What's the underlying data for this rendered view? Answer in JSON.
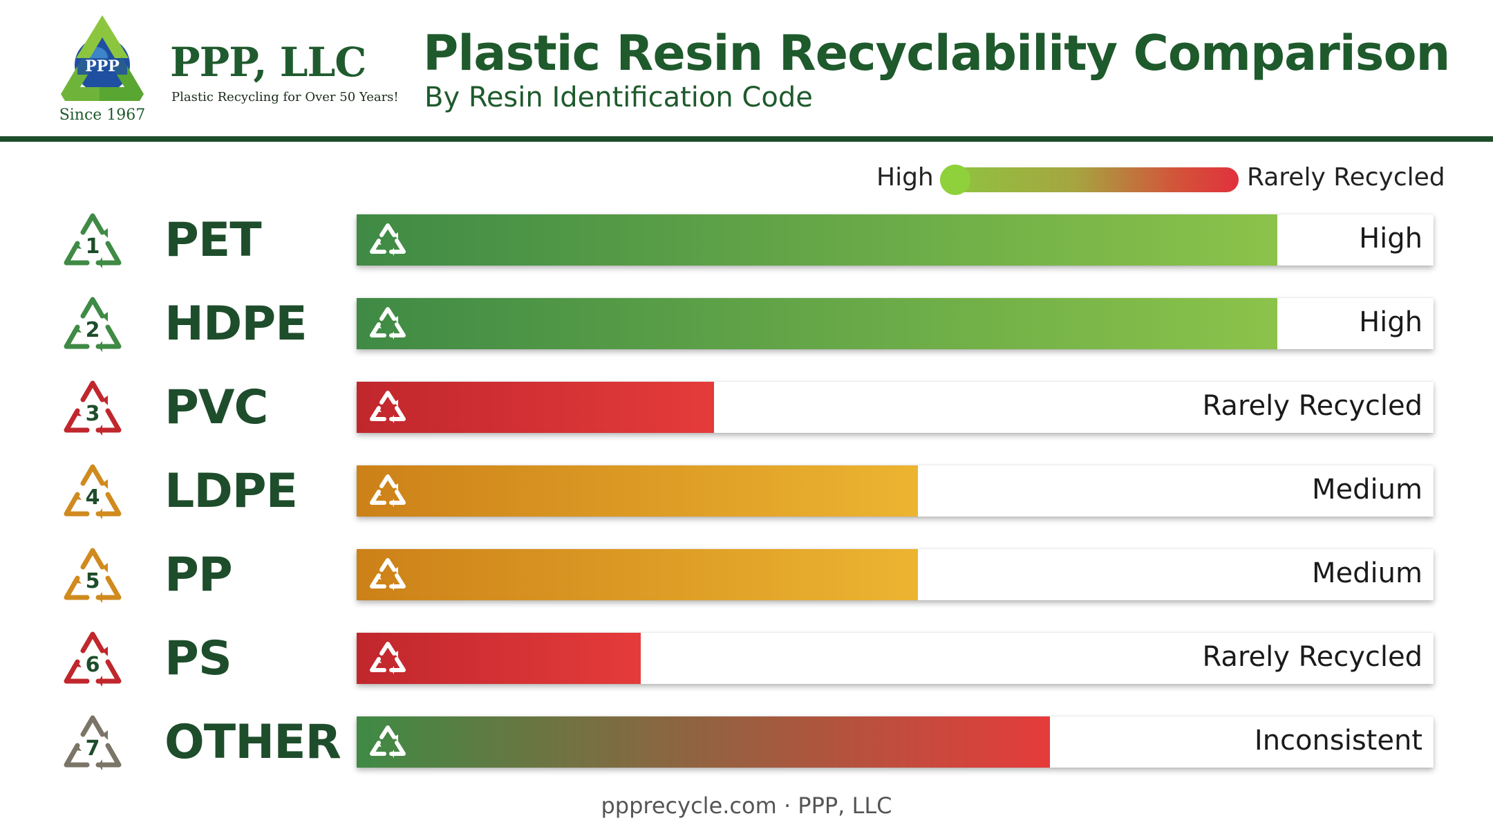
{
  "brand": {
    "logo_text": "PPP",
    "name": "PPP, LLC",
    "tagline": "Plastic Recycling for Over 50 Years!",
    "since": "Since 1967"
  },
  "title": "Plastic Resin Recyclability Comparison",
  "subtitle": "By Resin Identification Code",
  "legend": {
    "high_label": "High",
    "low_label": "Rarely Recycled",
    "colors": [
      "#8dc63f",
      "#e0313c"
    ]
  },
  "footer": "ppprecycle.com · PPP, LLC",
  "chart_data": {
    "type": "bar",
    "orientation": "horizontal",
    "title": "Plastic Resin Recyclability Comparison",
    "subtitle": "By Resin Identification Code",
    "xlim": [
      0,
      1
    ],
    "categories": [
      "PET",
      "HDPE",
      "PVC",
      "LDPE",
      "PP",
      "PS",
      "OTHER"
    ],
    "codes": [
      "1",
      "2",
      "3",
      "4",
      "5",
      "6",
      "7"
    ],
    "values": [
      0.855,
      0.855,
      0.332,
      0.521,
      0.521,
      0.264,
      0.644
    ],
    "levels": [
      "High",
      "High",
      "Rarely Recycled",
      "Medium",
      "Medium",
      "Rarely Recycled",
      "Inconsistent"
    ],
    "bar_colors": [
      [
        "#3f8a45",
        "#8bc34a"
      ],
      [
        "#3f8a45",
        "#8bc34a"
      ],
      [
        "#c0272d",
        "#e53b3b"
      ],
      [
        "#cc8118",
        "#ecb431"
      ],
      [
        "#cc8118",
        "#ecb431"
      ],
      [
        "#c0272d",
        "#e53b3b"
      ],
      [
        "#3f8a45",
        "#e53b3b"
      ]
    ],
    "icon_colors": [
      "#3f8a45",
      "#3f8a45",
      "#c0272d",
      "#d08a1e",
      "#d08a1e",
      "#c0272d",
      "#7a7566"
    ],
    "legend_position": "top-right",
    "grid": false
  }
}
